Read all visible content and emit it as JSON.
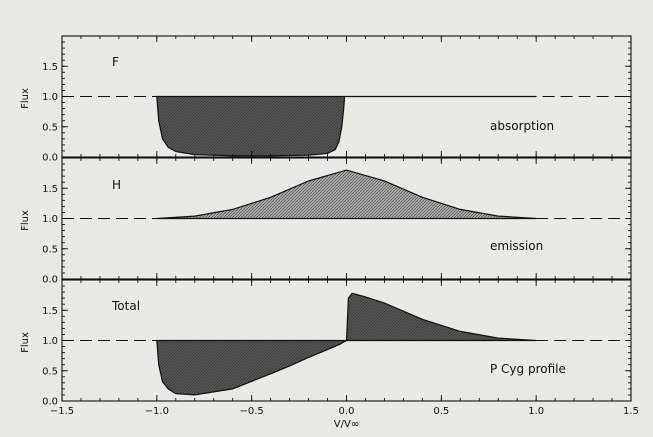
{
  "chart_data": {
    "type": "area",
    "xlabel": "V/V∞",
    "xlim": [
      -1.5,
      1.5
    ],
    "x_ticks": [
      "−1.5",
      "−1.0",
      "−0.5",
      "0.0",
      "0.5",
      "1.0",
      "1.5"
    ],
    "y_ticks": [
      "0.0",
      "0.5",
      "1.0",
      "1.5"
    ],
    "panels": [
      {
        "id": "absorption",
        "ylabel": "Flux",
        "ylim": [
          0,
          2
        ],
        "tag": "F",
        "annotation": "absorption",
        "continuum": 1.0,
        "fill": "#555555",
        "profile": {
          "x": [
            -1.0,
            -0.99,
            -0.97,
            -0.94,
            -0.9,
            -0.8,
            -0.6,
            -0.4,
            -0.2,
            -0.1,
            -0.06,
            -0.04,
            -0.025,
            -0.015,
            -0.01
          ],
          "y": [
            1.0,
            0.6,
            0.3,
            0.16,
            0.09,
            0.04,
            0.02,
            0.02,
            0.03,
            0.06,
            0.12,
            0.25,
            0.5,
            0.8,
            1.0
          ]
        }
      },
      {
        "id": "emission",
        "ylabel": "Flux",
        "ylim": [
          0,
          2
        ],
        "tag": "H",
        "annotation": "emission",
        "continuum": 1.0,
        "fill": "#a6a6a6",
        "profile": {
          "x": [
            -1.0,
            -0.8,
            -0.6,
            -0.4,
            -0.2,
            0.0,
            0.2,
            0.4,
            0.6,
            0.8,
            1.0
          ],
          "y": [
            1.0,
            1.04,
            1.15,
            1.35,
            1.62,
            1.8,
            1.62,
            1.35,
            1.15,
            1.04,
            1.0
          ]
        }
      },
      {
        "id": "total",
        "ylabel": "Flux",
        "ylim": [
          0,
          2
        ],
        "tag": "Total",
        "annotation": "P Cyg profile",
        "continuum": 1.0,
        "fill": "#555555",
        "profile": {
          "x": [
            -1.0,
            -0.99,
            -0.97,
            -0.94,
            -0.9,
            -0.8,
            -0.6,
            -0.4,
            -0.3,
            -0.2,
            -0.1,
            -0.04,
            0.0,
            0.01,
            0.03,
            0.1,
            0.2,
            0.4,
            0.6,
            0.8,
            1.0
          ],
          "y": [
            1.0,
            0.6,
            0.32,
            0.2,
            0.12,
            0.1,
            0.2,
            0.45,
            0.58,
            0.72,
            0.85,
            0.93,
            1.0,
            1.7,
            1.78,
            1.72,
            1.62,
            1.35,
            1.15,
            1.04,
            1.0
          ]
        }
      }
    ]
  }
}
